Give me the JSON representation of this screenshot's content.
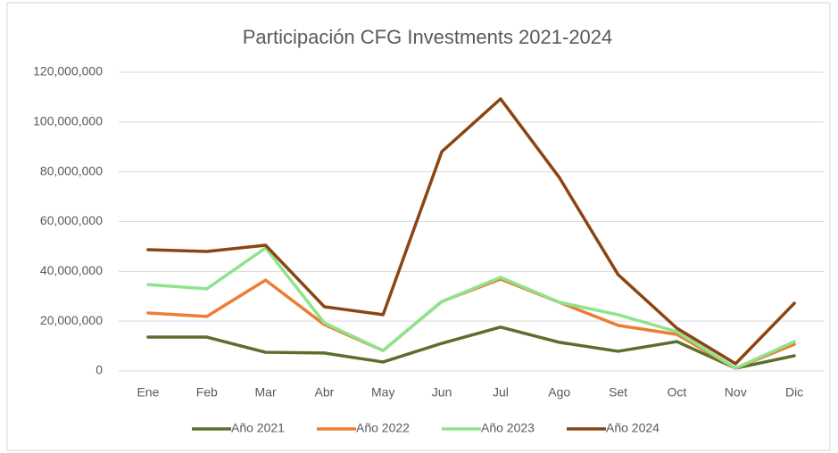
{
  "chart_data": {
    "type": "line",
    "title": "Participación CFG Investments 2021-2024",
    "categories": [
      "Ene",
      "Feb",
      "Mar",
      "Abr",
      "May",
      "Jun",
      "Jul",
      "Ago",
      "Set",
      "Oct",
      "Nov",
      "Dic"
    ],
    "series": [
      {
        "name": "Año 2021",
        "color": "#5a6e2e",
        "values": [
          13600000,
          13600000,
          7500000,
          7200000,
          3600000,
          11100000,
          17600000,
          11500000,
          7900000,
          11800000,
          1100000,
          6100000
        ]
      },
      {
        "name": "Año 2022",
        "color": "#ed7d31",
        "values": [
          23300000,
          21900000,
          36500000,
          18600000,
          8200000,
          27900000,
          36900000,
          27600000,
          18300000,
          14700000,
          1100000,
          10700000
        ]
      },
      {
        "name": "Año 2023",
        "color": "#8ee38e",
        "values": [
          34700000,
          33000000,
          49400000,
          19300000,
          8200000,
          27900000,
          37600000,
          27600000,
          22600000,
          15800000,
          1100000,
          11800000
        ]
      },
      {
        "name": "Año 2024",
        "color": "#8b4513",
        "values": [
          48700000,
          48000000,
          50500000,
          25800000,
          22600000,
          88100000,
          109300000,
          77700000,
          38700000,
          17200000,
          2900000,
          27200000
        ]
      }
    ],
    "ylim": [
      0,
      120000000
    ],
    "yticks": [
      0,
      {
        "value": 20000000,
        "label": "20,000,000"
      },
      {
        "value": 40000000,
        "label": "40,000,000"
      },
      {
        "value": 60000000,
        "label": "60,000,000"
      },
      {
        "value": 80000000,
        "label": "80,000,000"
      },
      {
        "value": 100000000,
        "label": "100,000,000"
      },
      {
        "value": 120000000,
        "label": "120,000,000"
      }
    ],
    "grid": true,
    "legend": "bottom"
  }
}
